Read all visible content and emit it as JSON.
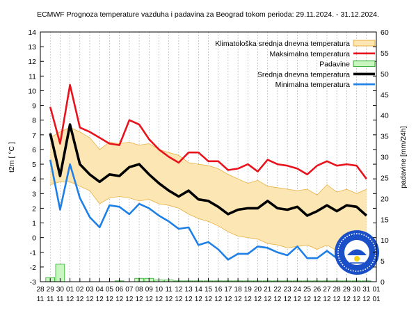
{
  "colors": {
    "climate_fill": "#fce6b4",
    "climate_edge": "#e8b040",
    "max_line": "#e8121c",
    "mean_line": "#000000",
    "min_line": "#1e7fe6",
    "precip_fill": "#c8f5c0",
    "precip_edge": "#2aa82a",
    "grid": "#8c8c8c"
  },
  "chart_data": {
    "type": "line",
    "title": "ECMWF Prognoza temperature vazduha i padavina za Beograd tokom perioda: 29.11.2024. - 31.12.2024.",
    "ylabel": "t2m [ °C ]",
    "y2label": "padavine [mm/24h]",
    "ylim": [
      -3,
      14
    ],
    "y2lim": [
      0,
      60
    ],
    "y_ticks": [
      "-3",
      "-2",
      "-1",
      "0",
      "1",
      "2",
      "3",
      "4",
      "5",
      "6",
      "7",
      "8",
      "9",
      "10",
      "11",
      "12",
      "13",
      "14"
    ],
    "y2_ticks": [
      "0",
      "5",
      "10",
      "15",
      "20",
      "25",
      "30",
      "35",
      "40",
      "45",
      "50",
      "55",
      "60"
    ],
    "x_ticks_day": [
      "28",
      "29",
      "30",
      "01",
      "02",
      "03",
      "04",
      "05",
      "06",
      "07",
      "08",
      "09",
      "10",
      "11",
      "12",
      "13",
      "14",
      "15",
      "16",
      "17",
      "18",
      "19",
      "20",
      "21",
      "22",
      "23",
      "24",
      "25",
      "26",
      "27",
      "28",
      "29",
      "30",
      "31",
      "01"
    ],
    "x_ticks_month": [
      "11",
      "11",
      "11",
      "12",
      "12",
      "12",
      "12",
      "12",
      "12",
      "12",
      "12",
      "12",
      "12",
      "12",
      "12",
      "12",
      "12",
      "12",
      "12",
      "12",
      "12",
      "12",
      "12",
      "12",
      "12",
      "12",
      "12",
      "12",
      "12",
      "12",
      "12",
      "12",
      "12",
      "12",
      "01"
    ],
    "legend": [
      {
        "key": "climate",
        "label": "Klimatološka srednja dnevna temperatura"
      },
      {
        "key": "max",
        "label": "Maksimalna temperatura"
      },
      {
        "key": "precip",
        "label": "Padavine"
      },
      {
        "key": "mean",
        "label": "Srednja dnevna temperatura"
      },
      {
        "key": "min",
        "label": "Minimalna temperatura"
      }
    ],
    "legend_position": "top-right",
    "grid": "vertical dashed lines",
    "x_start_index": 1,
    "climate_band": {
      "upper": [
        6.8,
        7.2,
        7.5,
        7.2,
        6.8,
        6.0,
        6.5,
        6.4,
        6.5,
        6.3,
        6.4,
        6.0,
        5.8,
        5.6,
        5.1,
        5.0,
        4.9,
        4.7,
        4.3,
        4.0,
        3.7,
        3.9,
        3.5,
        3.4,
        3.3,
        3.2,
        3.3,
        2.9,
        3.6,
        3.1,
        3.3,
        3.0,
        3.3
      ],
      "lower": [
        3.6,
        3.8,
        3.8,
        3.5,
        3.2,
        2.3,
        2.7,
        2.8,
        2.7,
        2.5,
        2.6,
        2.3,
        2.2,
        2.0,
        1.6,
        1.3,
        1.1,
        0.8,
        0.4,
        0.1,
        0.0,
        -0.1,
        -0.4,
        -0.5,
        -0.7,
        -0.6,
        -0.5,
        -0.8,
        -0.5,
        -0.9,
        -0.9,
        -0.8,
        -0.4
      ]
    },
    "series": [
      {
        "key": "max",
        "name": "Maksimalna temperatura",
        "values": [
          8.9,
          6.4,
          10.4,
          7.5,
          7.2,
          6.8,
          6.4,
          6.3,
          8.0,
          7.7,
          6.7,
          6.0,
          5.5,
          5.1,
          5.8,
          5.8,
          5.2,
          5.2,
          4.6,
          4.7,
          5.0,
          4.5,
          5.3,
          5.0,
          4.9,
          4.7,
          4.3,
          4.9,
          5.2,
          4.9,
          5.0,
          4.9,
          4.0
        ]
      },
      {
        "key": "mean",
        "name": "Srednja dnevna temperatura",
        "values": [
          7.1,
          4.2,
          7.7,
          5.0,
          4.3,
          3.8,
          4.3,
          4.2,
          4.8,
          5.0,
          4.3,
          3.7,
          3.2,
          2.8,
          3.2,
          2.6,
          2.5,
          2.1,
          1.6,
          1.9,
          2.0,
          2.0,
          2.5,
          2.0,
          1.9,
          2.1,
          1.5,
          1.8,
          2.2,
          1.8,
          2.2,
          2.1,
          1.5
        ]
      },
      {
        "key": "min",
        "name": "Minimalna temperatura",
        "values": [
          5.3,
          1.9,
          5.0,
          2.7,
          1.4,
          0.7,
          2.2,
          2.1,
          1.6,
          2.3,
          2.0,
          1.5,
          1.1,
          0.6,
          0.7,
          -0.5,
          -0.3,
          -0.8,
          -1.5,
          -1.1,
          -1.1,
          -0.6,
          -0.7,
          -1.0,
          -1.2,
          -0.6,
          -1.4,
          -1.4,
          -0.9,
          -1.4,
          -1.0,
          -0.6,
          -1.4
        ]
      },
      {
        "key": "precip",
        "name": "Padavine",
        "type": "bar",
        "values": [
          1.0,
          4.2,
          0,
          0,
          0,
          0,
          0,
          0.2,
          0,
          0.8,
          0.8,
          0.4,
          0.4,
          0.2,
          0.2,
          0.2,
          0.2,
          0.2,
          0.2,
          0.2,
          0.2,
          0.2,
          0.2,
          0.2,
          0.2,
          0.2,
          0.2,
          0.2,
          0.2,
          0.2,
          0.2,
          0.2,
          0.2
        ]
      }
    ]
  }
}
